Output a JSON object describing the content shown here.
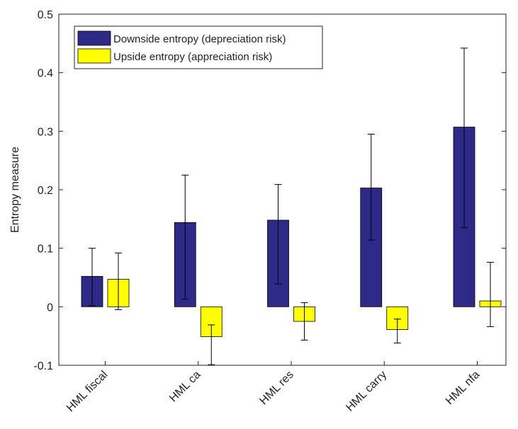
{
  "chart_data": {
    "type": "bar",
    "ylabel": "Entropy measure",
    "categories": [
      "HML fiscal",
      "HML ca",
      "HML res",
      "HML carry",
      "HML nfa"
    ],
    "series": [
      {
        "name": "Downside entropy (depreciation risk)",
        "color": "#2e2a87",
        "values": [
          0.052,
          0.144,
          0.148,
          0.203,
          0.307
        ],
        "lower": [
          0.002,
          0.013,
          0.039,
          0.114,
          0.135
        ],
        "upper": [
          0.1,
          0.225,
          0.209,
          0.295,
          0.442
        ]
      },
      {
        "name": "Upside entropy (appreciation risk)",
        "color": "#ffff00",
        "values": [
          0.047,
          -0.051,
          -0.025,
          -0.039,
          0.01
        ],
        "lower": [
          -0.005,
          -0.099,
          -0.057,
          -0.062,
          -0.034
        ],
        "upper": [
          0.092,
          -0.031,
          0.007,
          -0.021,
          0.076
        ]
      }
    ],
    "ylim": [
      -0.1,
      0.5
    ],
    "yticks": [
      -0.1,
      0,
      0.1,
      0.2,
      0.3,
      0.4,
      0.5
    ],
    "legend": "upper left"
  }
}
